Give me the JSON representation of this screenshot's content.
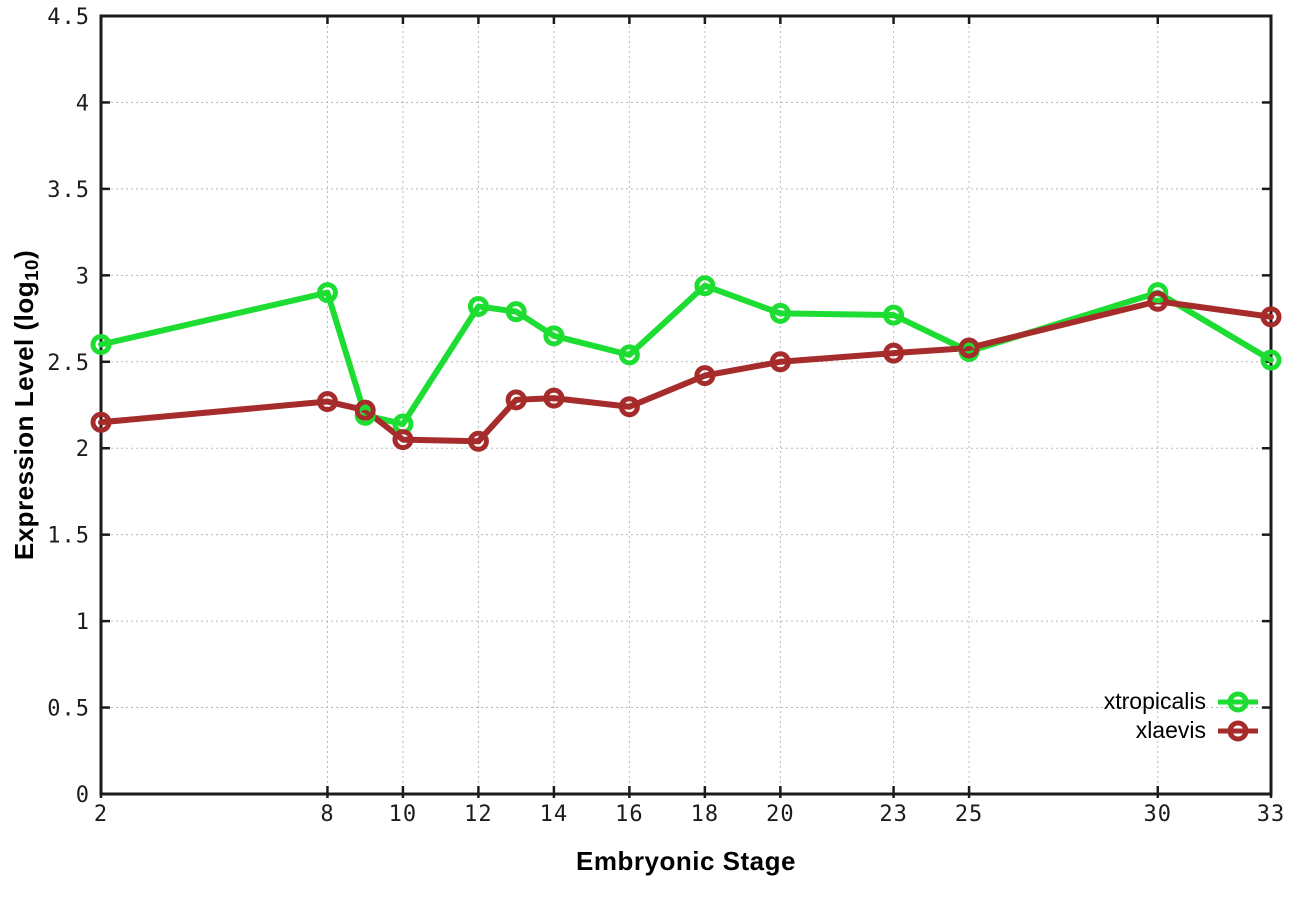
{
  "chart_data": {
    "type": "line",
    "title": "",
    "xlabel": "Embryonic Stage",
    "ylabel": "Expression Level (log10)",
    "ylabel_parts": {
      "prefix": "Expression Level (log",
      "sub": "10",
      "suffix": ")"
    },
    "x": [
      2,
      8,
      9,
      10,
      12,
      13,
      14,
      16,
      18,
      20,
      23,
      25,
      30,
      33
    ],
    "series": [
      {
        "name": "xtropicalis",
        "color": "#1edd32",
        "values": [
          2.6,
          2.9,
          2.19,
          2.14,
          2.82,
          2.79,
          2.65,
          2.54,
          2.94,
          2.78,
          2.77,
          2.56,
          2.9,
          2.51
        ]
      },
      {
        "name": "xlaevis",
        "color": "#a62c2c",
        "values": [
          2.15,
          2.27,
          2.22,
          2.05,
          2.04,
          2.28,
          2.29,
          2.24,
          2.42,
          2.5,
          2.55,
          2.58,
          2.85,
          2.76
        ]
      }
    ],
    "xlim": [
      2,
      33
    ],
    "ylim": [
      0,
      4.5
    ],
    "x_ticks": [
      2,
      8,
      10,
      12,
      14,
      16,
      18,
      20,
      23,
      25,
      30,
      33
    ],
    "y_ticks": [
      0,
      0.5,
      1,
      1.5,
      2,
      2.5,
      3,
      3.5,
      4,
      4.5
    ],
    "grid": true,
    "legend_position": "inside-bottom-right",
    "marker": "open-circle",
    "axis_color": "#1b1b1b",
    "grid_color": "#b9b9b9"
  }
}
